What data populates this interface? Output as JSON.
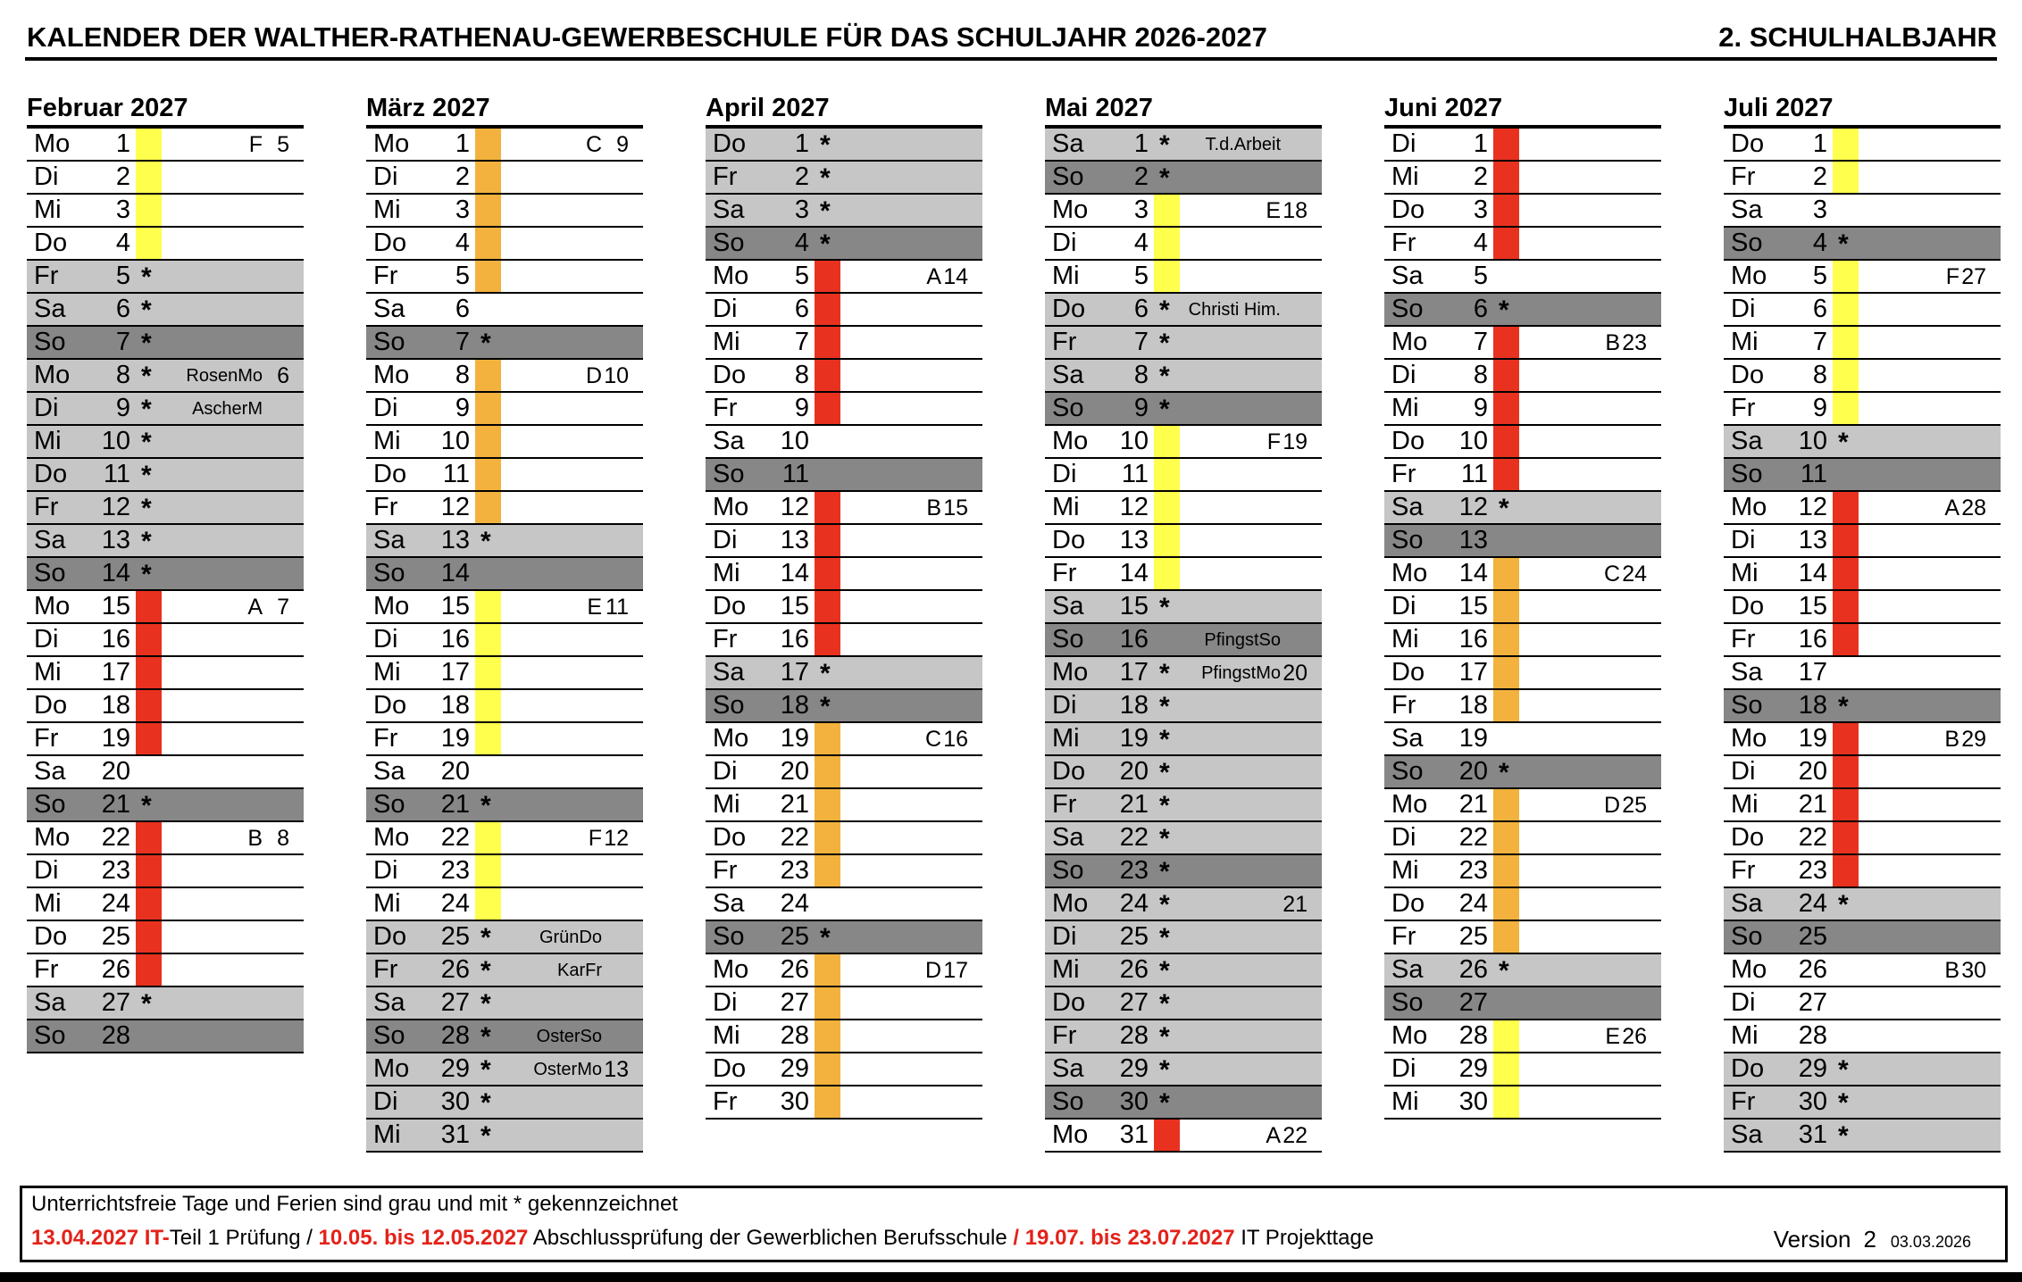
{
  "header": {
    "title_left": "KALENDER DER WALTHER-RATHENAU-GEWERBESCHULE FÜR DAS SCHULJAHR 2026-2027",
    "title_right": "2. SCHULHALBJAHR"
  },
  "colors": {
    "yellow": "#ffff4d",
    "orange": "#f2b23d",
    "red": "#e8321f",
    "row_white": "#ffffff",
    "row_light": "#c6c6c6",
    "row_dark": "#878787",
    "red_text": "#e32219"
  },
  "months": [
    {
      "name": "Februar 2027",
      "days": [
        {
          "wd": "Mo",
          "d": 1,
          "band": "yellow",
          "lbl": "F",
          "num": "5"
        },
        {
          "wd": "Di",
          "d": 2,
          "band": "yellow"
        },
        {
          "wd": "Mi",
          "d": 3,
          "band": "yellow"
        },
        {
          "wd": "Do",
          "d": 4,
          "band": "yellow"
        },
        {
          "wd": "Fr",
          "d": 5,
          "bg": "light",
          "star": 1
        },
        {
          "wd": "Sa",
          "d": 6,
          "bg": "light",
          "star": 1
        },
        {
          "wd": "So",
          "d": 7,
          "bg": "dark",
          "star": 1
        },
        {
          "wd": "Mo",
          "d": 8,
          "bg": "light",
          "star": 1,
          "lbl": "RosenMo",
          "num": "6"
        },
        {
          "wd": "Di",
          "d": 9,
          "bg": "light",
          "star": 1,
          "lbl": "AscherM"
        },
        {
          "wd": "Mi",
          "d": 10,
          "bg": "light",
          "star": 1
        },
        {
          "wd": "Do",
          "d": 11,
          "bg": "light",
          "star": 1
        },
        {
          "wd": "Fr",
          "d": 12,
          "bg": "light",
          "star": 1
        },
        {
          "wd": "Sa",
          "d": 13,
          "bg": "light",
          "star": 1
        },
        {
          "wd": "So",
          "d": 14,
          "bg": "dark",
          "star": 1
        },
        {
          "wd": "Mo",
          "d": 15,
          "band": "red",
          "lbl": "A",
          "num": "7"
        },
        {
          "wd": "Di",
          "d": 16,
          "band": "red"
        },
        {
          "wd": "Mi",
          "d": 17,
          "band": "red"
        },
        {
          "wd": "Do",
          "d": 18,
          "band": "red"
        },
        {
          "wd": "Fr",
          "d": 19,
          "band": "red"
        },
        {
          "wd": "Sa",
          "d": 20
        },
        {
          "wd": "So",
          "d": 21,
          "bg": "dark",
          "star": 1
        },
        {
          "wd": "Mo",
          "d": 22,
          "band": "red",
          "lbl": "B",
          "num": "8"
        },
        {
          "wd": "Di",
          "d": 23,
          "band": "red"
        },
        {
          "wd": "Mi",
          "d": 24,
          "band": "red"
        },
        {
          "wd": "Do",
          "d": 25,
          "band": "red"
        },
        {
          "wd": "Fr",
          "d": 26,
          "band": "red"
        },
        {
          "wd": "Sa",
          "d": 27,
          "bg": "light",
          "star": 1
        },
        {
          "wd": "So",
          "d": 28,
          "bg": "dark"
        }
      ]
    },
    {
      "name": "März 2027",
      "days": [
        {
          "wd": "Mo",
          "d": 1,
          "band": "orange",
          "lbl": "C",
          "num": "9"
        },
        {
          "wd": "Di",
          "d": 2,
          "band": "orange"
        },
        {
          "wd": "Mi",
          "d": 3,
          "band": "orange"
        },
        {
          "wd": "Do",
          "d": 4,
          "band": "orange"
        },
        {
          "wd": "Fr",
          "d": 5,
          "band": "orange"
        },
        {
          "wd": "Sa",
          "d": 6
        },
        {
          "wd": "So",
          "d": 7,
          "bg": "dark",
          "star": 1
        },
        {
          "wd": "Mo",
          "d": 8,
          "band": "orange",
          "lbl": "D",
          "num": "10"
        },
        {
          "wd": "Di",
          "d": 9,
          "band": "orange"
        },
        {
          "wd": "Mi",
          "d": 10,
          "band": "orange"
        },
        {
          "wd": "Do",
          "d": 11,
          "band": "orange"
        },
        {
          "wd": "Fr",
          "d": 12,
          "band": "orange"
        },
        {
          "wd": "Sa",
          "d": 13,
          "bg": "light",
          "star": 1
        },
        {
          "wd": "So",
          "d": 14,
          "bg": "dark"
        },
        {
          "wd": "Mo",
          "d": 15,
          "band": "yellow",
          "lbl": "E",
          "num": "11"
        },
        {
          "wd": "Di",
          "d": 16,
          "band": "yellow"
        },
        {
          "wd": "Mi",
          "d": 17,
          "band": "yellow"
        },
        {
          "wd": "Do",
          "d": 18,
          "band": "yellow"
        },
        {
          "wd": "Fr",
          "d": 19,
          "band": "yellow"
        },
        {
          "wd": "Sa",
          "d": 20
        },
        {
          "wd": "So",
          "d": 21,
          "bg": "dark",
          "star": 1
        },
        {
          "wd": "Mo",
          "d": 22,
          "band": "yellow",
          "lbl": "F",
          "num": "12"
        },
        {
          "wd": "Di",
          "d": 23,
          "band": "yellow"
        },
        {
          "wd": "Mi",
          "d": 24,
          "band": "yellow"
        },
        {
          "wd": "Do",
          "d": 25,
          "bg": "light",
          "star": 1,
          "lbl": "GrünDo"
        },
        {
          "wd": "Fr",
          "d": 26,
          "bg": "light",
          "star": 1,
          "lbl": "KarFr"
        },
        {
          "wd": "Sa",
          "d": 27,
          "bg": "light",
          "star": 1
        },
        {
          "wd": "So",
          "d": 28,
          "bg": "dark",
          "star": 1,
          "lbl": "OsterSo"
        },
        {
          "wd": "Mo",
          "d": 29,
          "bg": "light",
          "star": 1,
          "lbl": "OsterMo",
          "num": "13"
        },
        {
          "wd": "Di",
          "d": 30,
          "bg": "light",
          "star": 1
        },
        {
          "wd": "Mi",
          "d": 31,
          "bg": "light",
          "star": 1
        }
      ]
    },
    {
      "name": "April 2027",
      "days": [
        {
          "wd": "Do",
          "d": 1,
          "bg": "light",
          "star": 1
        },
        {
          "wd": "Fr",
          "d": 2,
          "bg": "light",
          "star": 1
        },
        {
          "wd": "Sa",
          "d": 3,
          "bg": "light",
          "star": 1
        },
        {
          "wd": "So",
          "d": 4,
          "bg": "dark",
          "star": 1
        },
        {
          "wd": "Mo",
          "d": 5,
          "band": "red",
          "lbl": "A",
          "num": "14"
        },
        {
          "wd": "Di",
          "d": 6,
          "band": "red"
        },
        {
          "wd": "Mi",
          "d": 7,
          "band": "red"
        },
        {
          "wd": "Do",
          "d": 8,
          "band": "red"
        },
        {
          "wd": "Fr",
          "d": 9,
          "band": "red"
        },
        {
          "wd": "Sa",
          "d": 10
        },
        {
          "wd": "So",
          "d": 11,
          "bg": "dark"
        },
        {
          "wd": "Mo",
          "d": 12,
          "band": "red",
          "lbl": "B",
          "num": "15"
        },
        {
          "wd": "Di",
          "d": 13,
          "band": "red"
        },
        {
          "wd": "Mi",
          "d": 14,
          "band": "red"
        },
        {
          "wd": "Do",
          "d": 15,
          "band": "red"
        },
        {
          "wd": "Fr",
          "d": 16,
          "band": "red"
        },
        {
          "wd": "Sa",
          "d": 17,
          "bg": "light",
          "star": 1
        },
        {
          "wd": "So",
          "d": 18,
          "bg": "dark",
          "star": 1
        },
        {
          "wd": "Mo",
          "d": 19,
          "band": "orange",
          "lbl": "C",
          "num": "16"
        },
        {
          "wd": "Di",
          "d": 20,
          "band": "orange"
        },
        {
          "wd": "Mi",
          "d": 21,
          "band": "orange"
        },
        {
          "wd": "Do",
          "d": 22,
          "band": "orange"
        },
        {
          "wd": "Fr",
          "d": 23,
          "band": "orange"
        },
        {
          "wd": "Sa",
          "d": 24
        },
        {
          "wd": "So",
          "d": 25,
          "bg": "dark",
          "star": 1
        },
        {
          "wd": "Mo",
          "d": 26,
          "band": "orange",
          "lbl": "D",
          "num": "17"
        },
        {
          "wd": "Di",
          "d": 27,
          "band": "orange"
        },
        {
          "wd": "Mi",
          "d": 28,
          "band": "orange"
        },
        {
          "wd": "Do",
          "d": 29,
          "band": "orange"
        },
        {
          "wd": "Fr",
          "d": 30,
          "band": "orange"
        }
      ]
    },
    {
      "name": "Mai 2027",
      "days": [
        {
          "wd": "Sa",
          "d": 1,
          "bg": "light",
          "star": 1,
          "lbl": "T.d.Arbeit"
        },
        {
          "wd": "So",
          "d": 2,
          "bg": "dark",
          "star": 1
        },
        {
          "wd": "Mo",
          "d": 3,
          "band": "yellow",
          "lbl": "E",
          "num": "18"
        },
        {
          "wd": "Di",
          "d": 4,
          "band": "yellow"
        },
        {
          "wd": "Mi",
          "d": 5,
          "band": "yellow"
        },
        {
          "wd": "Do",
          "d": 6,
          "bg": "light",
          "star": 1,
          "lbl": "Christi Him."
        },
        {
          "wd": "Fr",
          "d": 7,
          "bg": "light",
          "star": 1
        },
        {
          "wd": "Sa",
          "d": 8,
          "bg": "light",
          "star": 1
        },
        {
          "wd": "So",
          "d": 9,
          "bg": "dark",
          "star": 1
        },
        {
          "wd": "Mo",
          "d": 10,
          "band": "yellow",
          "lbl": "F",
          "num": "19"
        },
        {
          "wd": "Di",
          "d": 11,
          "band": "yellow"
        },
        {
          "wd": "Mi",
          "d": 12,
          "band": "yellow"
        },
        {
          "wd": "Do",
          "d": 13,
          "band": "yellow"
        },
        {
          "wd": "Fr",
          "d": 14,
          "band": "yellow"
        },
        {
          "wd": "Sa",
          "d": 15,
          "bg": "light",
          "star": 1
        },
        {
          "wd": "So",
          "d": 16,
          "bg": "dark",
          "lbl": "PfingstSo"
        },
        {
          "wd": "Mo",
          "d": 17,
          "bg": "light",
          "star": 1,
          "lbl": "PfingstMo",
          "num": "20"
        },
        {
          "wd": "Di",
          "d": 18,
          "bg": "light",
          "star": 1
        },
        {
          "wd": "Mi",
          "d": 19,
          "bg": "light",
          "star": 1
        },
        {
          "wd": "Do",
          "d": 20,
          "bg": "light",
          "star": 1
        },
        {
          "wd": "Fr",
          "d": 21,
          "bg": "light",
          "star": 1
        },
        {
          "wd": "Sa",
          "d": 22,
          "bg": "light",
          "star": 1
        },
        {
          "wd": "So",
          "d": 23,
          "bg": "dark",
          "star": 1
        },
        {
          "wd": "Mo",
          "d": 24,
          "bg": "light",
          "star": 1,
          "num": "21"
        },
        {
          "wd": "Di",
          "d": 25,
          "bg": "light",
          "star": 1
        },
        {
          "wd": "Mi",
          "d": 26,
          "bg": "light",
          "star": 1
        },
        {
          "wd": "Do",
          "d": 27,
          "bg": "light",
          "star": 1
        },
        {
          "wd": "Fr",
          "d": 28,
          "bg": "light",
          "star": 1
        },
        {
          "wd": "Sa",
          "d": 29,
          "bg": "light",
          "star": 1
        },
        {
          "wd": "So",
          "d": 30,
          "bg": "dark",
          "star": 1
        },
        {
          "wd": "Mo",
          "d": 31,
          "band": "red",
          "lbl": "A",
          "num": "22"
        }
      ]
    },
    {
      "name": "Juni 2027",
      "days": [
        {
          "wd": "Di",
          "d": 1,
          "band": "red"
        },
        {
          "wd": "Mi",
          "d": 2,
          "band": "red"
        },
        {
          "wd": "Do",
          "d": 3,
          "band": "red"
        },
        {
          "wd": "Fr",
          "d": 4,
          "band": "red"
        },
        {
          "wd": "Sa",
          "d": 5
        },
        {
          "wd": "So",
          "d": 6,
          "bg": "dark",
          "star": 1
        },
        {
          "wd": "Mo",
          "d": 7,
          "band": "red",
          "lbl": "B",
          "num": "23"
        },
        {
          "wd": "Di",
          "d": 8,
          "band": "red"
        },
        {
          "wd": "Mi",
          "d": 9,
          "band": "red"
        },
        {
          "wd": "Do",
          "d": 10,
          "band": "red"
        },
        {
          "wd": "Fr",
          "d": 11,
          "band": "red"
        },
        {
          "wd": "Sa",
          "d": 12,
          "bg": "light",
          "star": 1
        },
        {
          "wd": "So",
          "d": 13,
          "bg": "dark"
        },
        {
          "wd": "Mo",
          "d": 14,
          "band": "orange",
          "lbl": "C",
          "num": "24"
        },
        {
          "wd": "Di",
          "d": 15,
          "band": "orange"
        },
        {
          "wd": "Mi",
          "d": 16,
          "band": "orange"
        },
        {
          "wd": "Do",
          "d": 17,
          "band": "orange"
        },
        {
          "wd": "Fr",
          "d": 18,
          "band": "orange"
        },
        {
          "wd": "Sa",
          "d": 19
        },
        {
          "wd": "So",
          "d": 20,
          "bg": "dark",
          "star": 1
        },
        {
          "wd": "Mo",
          "d": 21,
          "band": "orange",
          "lbl": "D",
          "num": "25"
        },
        {
          "wd": "Di",
          "d": 22,
          "band": "orange"
        },
        {
          "wd": "Mi",
          "d": 23,
          "band": "orange"
        },
        {
          "wd": "Do",
          "d": 24,
          "band": "orange"
        },
        {
          "wd": "Fr",
          "d": 25,
          "band": "orange"
        },
        {
          "wd": "Sa",
          "d": 26,
          "bg": "light",
          "star": 1
        },
        {
          "wd": "So",
          "d": 27,
          "bg": "dark"
        },
        {
          "wd": "Mo",
          "d": 28,
          "band": "yellow",
          "lbl": "E",
          "num": "26"
        },
        {
          "wd": "Di",
          "d": 29,
          "band": "yellow"
        },
        {
          "wd": "Mi",
          "d": 30,
          "band": "yellow"
        }
      ]
    },
    {
      "name": "Juli 2027",
      "days": [
        {
          "wd": "Do",
          "d": 1,
          "band": "yellow"
        },
        {
          "wd": "Fr",
          "d": 2,
          "band": "yellow"
        },
        {
          "wd": "Sa",
          "d": 3
        },
        {
          "wd": "So",
          "d": 4,
          "bg": "dark",
          "star": 1
        },
        {
          "wd": "Mo",
          "d": 5,
          "band": "yellow",
          "lbl": "F",
          "num": "27"
        },
        {
          "wd": "Di",
          "d": 6,
          "band": "yellow"
        },
        {
          "wd": "Mi",
          "d": 7,
          "band": "yellow"
        },
        {
          "wd": "Do",
          "d": 8,
          "band": "yellow"
        },
        {
          "wd": "Fr",
          "d": 9,
          "band": "yellow"
        },
        {
          "wd": "Sa",
          "d": 10,
          "bg": "light",
          "star": 1
        },
        {
          "wd": "So",
          "d": 11,
          "bg": "dark"
        },
        {
          "wd": "Mo",
          "d": 12,
          "band": "red",
          "lbl": "A",
          "num": "28"
        },
        {
          "wd": "Di",
          "d": 13,
          "band": "red"
        },
        {
          "wd": "Mi",
          "d": 14,
          "band": "red"
        },
        {
          "wd": "Do",
          "d": 15,
          "band": "red"
        },
        {
          "wd": "Fr",
          "d": 16,
          "band": "red"
        },
        {
          "wd": "Sa",
          "d": 17
        },
        {
          "wd": "So",
          "d": 18,
          "bg": "dark",
          "star": 1
        },
        {
          "wd": "Mo",
          "d": 19,
          "band": "red",
          "lbl": "B",
          "num": "29"
        },
        {
          "wd": "Di",
          "d": 20,
          "band": "red"
        },
        {
          "wd": "Mi",
          "d": 21,
          "band": "red"
        },
        {
          "wd": "Do",
          "d": 22,
          "band": "red"
        },
        {
          "wd": "Fr",
          "d": 23,
          "band": "red"
        },
        {
          "wd": "Sa",
          "d": 24,
          "bg": "light",
          "star": 1
        },
        {
          "wd": "So",
          "d": 25,
          "bg": "dark"
        },
        {
          "wd": "Mo",
          "d": 26,
          "lbl": "B",
          "num": "30"
        },
        {
          "wd": "Di",
          "d": 27
        },
        {
          "wd": "Mi",
          "d": 28
        },
        {
          "wd": "Do",
          "d": 29,
          "bg": "light",
          "star": 1
        },
        {
          "wd": "Fr",
          "d": 30,
          "bg": "light",
          "star": 1
        },
        {
          "wd": "Sa",
          "d": 31,
          "bg": "light",
          "star": 1
        }
      ]
    }
  ],
  "footer": {
    "line1": "Unterrichtsfreie Tage und Ferien sind grau und mit * gekennzeichnet",
    "line2_segments": [
      {
        "t": "13.04.2027 IT-",
        "c": "red"
      },
      {
        "t": "Teil 1 Prüfung  /  ",
        "c": "black"
      },
      {
        "t": "10.05. bis 12.05.2027",
        "c": "red"
      },
      {
        "t": " Abschlussprüfung der Gewerblichen Berufsschule ",
        "c": "black"
      },
      {
        "t": "/ 19.07. bis 23.07.2027",
        "c": "red"
      },
      {
        "t": " IT Projekttage",
        "c": "black"
      }
    ],
    "version_label": "Version",
    "version_number": "2",
    "version_date": "03.03.2026"
  }
}
